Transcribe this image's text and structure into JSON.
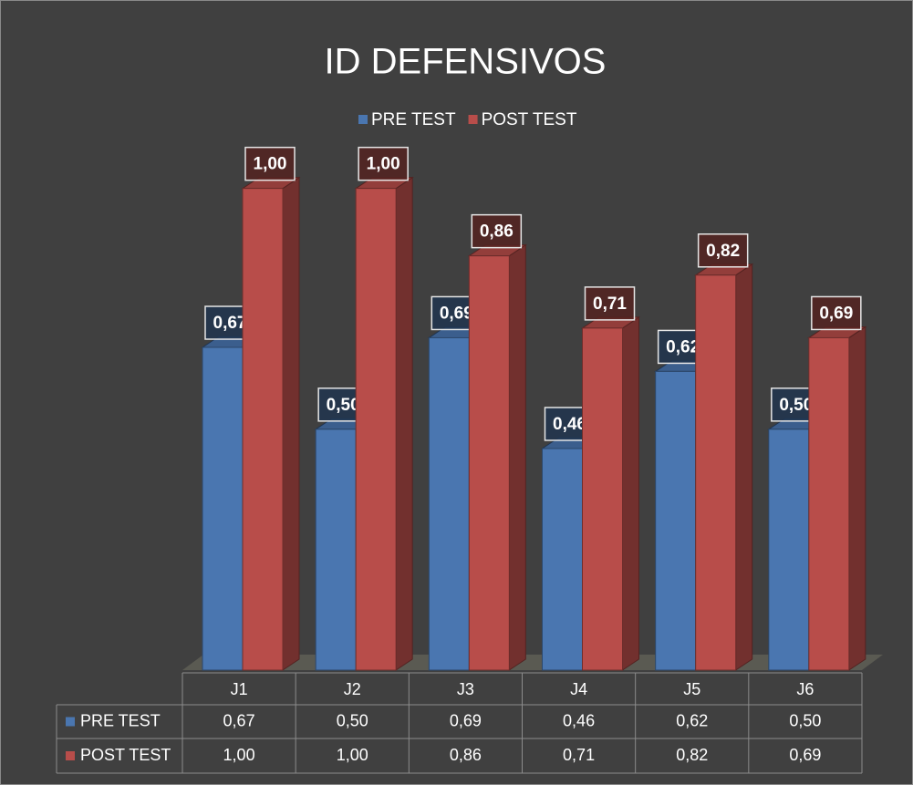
{
  "chart_data": {
    "type": "bar3d",
    "title": "ID DEFENSIVOS",
    "categories": [
      "J1",
      "J2",
      "J3",
      "J4",
      "J5",
      "J6"
    ],
    "series": [
      {
        "name": "PRE TEST",
        "color": "#4a76b0",
        "values": [
          0.67,
          0.5,
          0.69,
          0.46,
          0.62,
          0.5
        ],
        "value_labels": [
          "0,67",
          "0,50",
          "0,69",
          "0,46",
          "0,62",
          "0,50"
        ]
      },
      {
        "name": "POST TEST",
        "color": "#b84d4a",
        "values": [
          1.0,
          1.0,
          0.86,
          0.71,
          0.82,
          0.69
        ],
        "value_labels": [
          "1,00",
          "1,00",
          "0,86",
          "0,71",
          "0,82",
          "0,69"
        ]
      }
    ],
    "ylim": [
      0,
      1.2
    ],
    "legend": "top",
    "data_table": true
  }
}
